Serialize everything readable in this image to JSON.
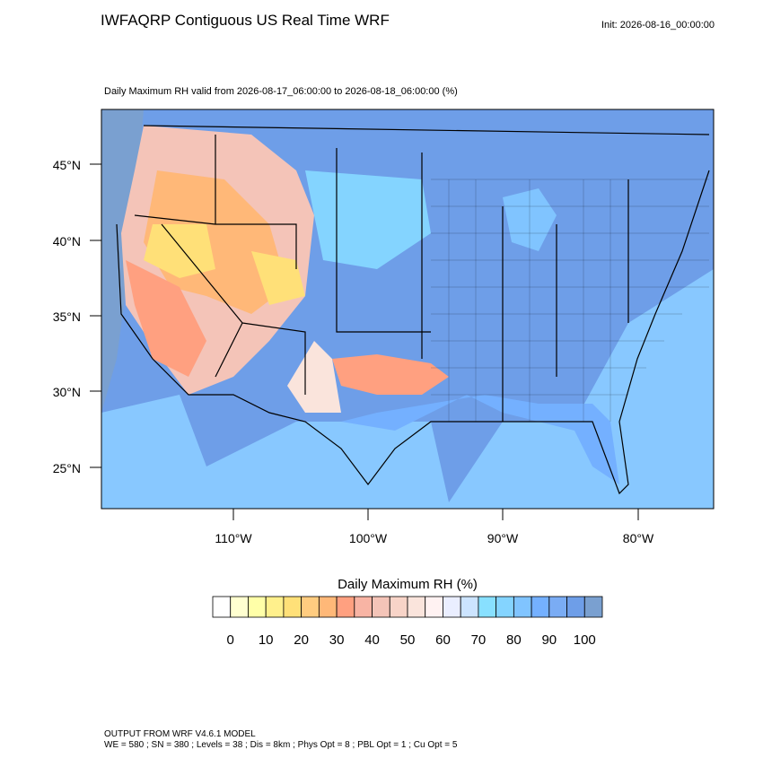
{
  "header": {
    "title": "IWFAQRP Contiguous US Real Time WRF",
    "init": "Init: 2026-08-16_00:00:00",
    "subtitle": "Daily Maximum RH valid from 2026-08-17_06:00:00 to 2026-08-18_06:00:00   (%)"
  },
  "map": {
    "lat_labels": [
      "45°N",
      "40°N",
      "35°N",
      "30°N",
      "25°N"
    ],
    "lon_labels": [
      "110°W",
      "100°W",
      "90°W",
      "80°W"
    ]
  },
  "colorbar": {
    "title": "Daily Maximum RH  (%)",
    "colors": [
      "#ffffff",
      "#ffffd0",
      "#ffffa8",
      "#fff08c",
      "#ffe078",
      "#ffcc80",
      "#ffb878",
      "#ffa080",
      "#f8b4a4",
      "#f4c4b8",
      "#f8d4c8",
      "#fae4dc",
      "#fff2f2",
      "#eaeeff",
      "#cce4ff",
      "#88e0ff",
      "#84d4ff",
      "#80c4ff",
      "#74b0ff",
      "#7aacf4",
      "#6e9ee8",
      "#7aa0d0"
    ],
    "labels": [
      0,
      10,
      20,
      30,
      40,
      50,
      60,
      70,
      80,
      90,
      100
    ]
  },
  "footer": {
    "line1": "OUTPUT FROM WRF V4.6.1 MODEL",
    "line2": "WE = 580 ; SN = 380 ; Levels = 38 ; Dis = 8km ; Phys Opt = 8 ; PBL Opt = 1 ; Cu Opt = 5"
  }
}
